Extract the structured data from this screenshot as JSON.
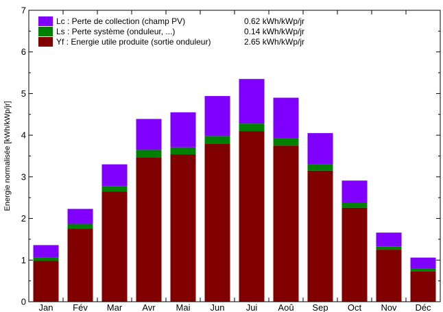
{
  "chart_data": {
    "type": "bar",
    "stacked": true,
    "categories": [
      "Jan",
      "Fév",
      "Mar",
      "Avr",
      "Mai",
      "Jun",
      "Jui",
      "Aoû",
      "Sep",
      "Oct",
      "Nov",
      "Déc"
    ],
    "series": [
      {
        "name": "Yf : Energie utile produite  (sortie onduleur)",
        "summary": "2.65 kWh/kWp/jr",
        "color": "#800000",
        "values": [
          0.98,
          1.76,
          2.65,
          3.47,
          3.54,
          3.8,
          4.1,
          3.75,
          3.15,
          2.26,
          1.25,
          0.73
        ]
      },
      {
        "name": "Ls : Perte système  (onduleur, ...)",
        "summary": "0.14 kWh/kWp/jr",
        "color": "#008000",
        "values": [
          0.08,
          0.11,
          0.13,
          0.18,
          0.17,
          0.18,
          0.18,
          0.18,
          0.15,
          0.12,
          0.08,
          0.07
        ]
      },
      {
        "name": "Lc : Perte de collection (champ PV)",
        "summary": "0.62 kWh/kWp/jr",
        "color": "#8000ff",
        "values": [
          0.3,
          0.36,
          0.52,
          0.74,
          0.84,
          0.96,
          1.07,
          0.97,
          0.75,
          0.53,
          0.33,
          0.26
        ]
      }
    ],
    "ylabel": "Energie normalisée [kWh/kWp/jr]",
    "xlabel": "",
    "ylim": [
      0,
      7
    ],
    "yticks": [
      0,
      1,
      2,
      3,
      4,
      5,
      6,
      7
    ],
    "grid": false,
    "legend_position": "top-left",
    "legend_order": [
      2,
      1,
      0
    ]
  }
}
